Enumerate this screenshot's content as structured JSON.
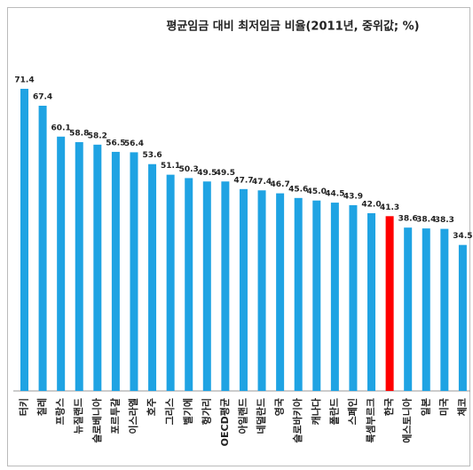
{
  "chart_data": {
    "type": "bar",
    "title": "평균임금 대비 최저임금 비율(2011년, 중위값; %)",
    "categories": [
      "터키",
      "칠레",
      "프랑스",
      "뉴질랜드",
      "슬로베니아",
      "포르투갈",
      "이스라엘",
      "호주",
      "그리스",
      "벨기에",
      "헝가리",
      "OECD평균",
      "아일랜드",
      "네덜란드",
      "영국",
      "슬로바키아",
      "캐나다",
      "폴란드",
      "스페인",
      "룩셈부르크",
      "한국",
      "에스토니아",
      "일본",
      "미국",
      "체코"
    ],
    "values": [
      71.4,
      67.4,
      60.1,
      58.8,
      58.2,
      56.5,
      56.4,
      53.6,
      51.1,
      50.3,
      49.5,
      49.5,
      47.7,
      47.4,
      46.7,
      45.6,
      45.0,
      44.5,
      43.9,
      42.0,
      41.3,
      38.6,
      38.4,
      38.3,
      34.5
    ],
    "value_labels": [
      "71.4",
      "67.4",
      "60.1",
      "58.8",
      "58.2",
      "56.5",
      "56.4",
      "53.6",
      "51.1",
      "50.3",
      "49.5",
      "49.5",
      "47.7",
      "47.4",
      "46.7",
      "45.6",
      "45.0",
      "44.5",
      "43.9",
      "42.0",
      "41.3",
      "38.6",
      "38.4",
      "38.3",
      "34.5"
    ],
    "colors": [
      "#1fa3e3",
      "#1fa3e3",
      "#1fa3e3",
      "#1fa3e3",
      "#1fa3e3",
      "#1fa3e3",
      "#1fa3e3",
      "#1fa3e3",
      "#1fa3e3",
      "#1fa3e3",
      "#1fa3e3",
      "#1fa3e3",
      "#1fa3e3",
      "#1fa3e3",
      "#1fa3e3",
      "#1fa3e3",
      "#1fa3e3",
      "#1fa3e3",
      "#1fa3e3",
      "#1fa3e3",
      "#ff0000",
      "#1fa3e3",
      "#1fa3e3",
      "#1fa3e3",
      "#1fa3e3"
    ],
    "ylim": [
      0,
      80
    ]
  }
}
